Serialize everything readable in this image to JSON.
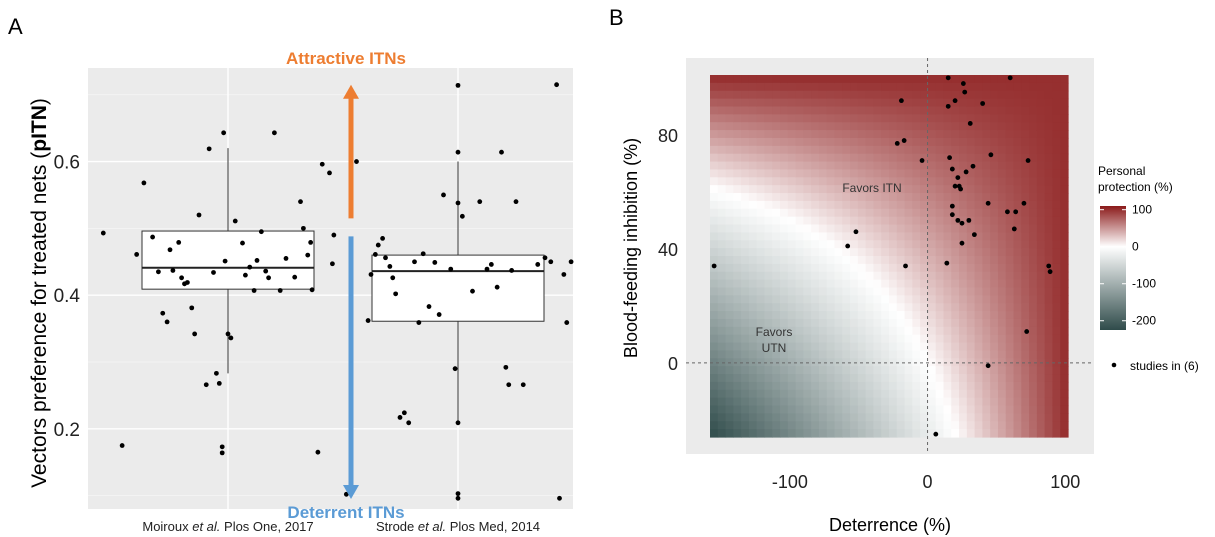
{
  "panels": {
    "A": {
      "letter": "A"
    },
    "B": {
      "letter": "B"
    }
  },
  "chart_data": [
    {
      "type": "scatter",
      "subtype": "boxplot-with-jitter",
      "ylabel_prefix": "Vectors preference for treated nets (",
      "ylabel_bold": "pITN",
      "ylabel_suffix": ")",
      "ylim": [
        0.08,
        0.74
      ],
      "yticks": [
        0.2,
        0.4,
        0.6
      ],
      "ytick_labels": [
        "0.2",
        "0.4",
        "0.6"
      ],
      "grid": true,
      "categories": [
        {
          "pre": "Moiroux ",
          "em": "et al.",
          "post": " Plos One, 2017"
        },
        {
          "pre": "Strode ",
          "em": "et al.",
          "post": " Plos Med, 2014"
        }
      ],
      "boxes": [
        {
          "q1": 0.409,
          "median": 0.441,
          "q3": 0.496,
          "whisker_low": 0.283,
          "whisker_high": 0.62
        },
        {
          "q1": 0.361,
          "median": 0.436,
          "q3": 0.46,
          "whisker_low": 0.209,
          "whisker_high": 0.6
        }
      ],
      "points": [
        [
          {
            "x": -0.86,
            "y": 0.493
          },
          {
            "x": -0.73,
            "y": 0.175
          },
          {
            "x": -0.63,
            "y": 0.461
          },
          {
            "x": -0.58,
            "y": 0.568
          },
          {
            "x": -0.52,
            "y": 0.487
          },
          {
            "x": -0.48,
            "y": 0.435
          },
          {
            "x": -0.45,
            "y": 0.373
          },
          {
            "x": -0.42,
            "y": 0.36
          },
          {
            "x": -0.4,
            "y": 0.468
          },
          {
            "x": -0.38,
            "y": 0.437
          },
          {
            "x": -0.34,
            "y": 0.479
          },
          {
            "x": -0.32,
            "y": 0.426
          },
          {
            "x": -0.3,
            "y": 0.417
          },
          {
            "x": -0.28,
            "y": 0.419
          },
          {
            "x": -0.25,
            "y": 0.381
          },
          {
            "x": -0.23,
            "y": 0.342
          },
          {
            "x": -0.2,
            "y": 0.52
          },
          {
            "x": -0.15,
            "y": 0.266
          },
          {
            "x": -0.13,
            "y": 0.619
          },
          {
            "x": -0.1,
            "y": 0.434
          },
          {
            "x": -0.08,
            "y": 0.283
          },
          {
            "x": -0.06,
            "y": 0.268
          },
          {
            "x": -0.04,
            "y": 0.173
          },
          {
            "x": -0.04,
            "y": 0.164
          },
          {
            "x": -0.03,
            "y": 0.643
          },
          {
            "x": -0.02,
            "y": 0.451
          },
          {
            "x": 0.0,
            "y": 0.342
          },
          {
            "x": 0.02,
            "y": 0.336
          },
          {
            "x": 0.05,
            "y": 0.511
          },
          {
            "x": 0.1,
            "y": 0.478
          },
          {
            "x": 0.12,
            "y": 0.43
          },
          {
            "x": 0.15,
            "y": 0.442
          },
          {
            "x": 0.18,
            "y": 0.407
          },
          {
            "x": 0.2,
            "y": 0.452
          },
          {
            "x": 0.23,
            "y": 0.495
          },
          {
            "x": 0.26,
            "y": 0.436
          },
          {
            "x": 0.28,
            "y": 0.426
          },
          {
            "x": 0.32,
            "y": 0.643
          },
          {
            "x": 0.36,
            "y": 0.407
          },
          {
            "x": 0.4,
            "y": 0.455
          },
          {
            "x": 0.46,
            "y": 0.427
          },
          {
            "x": 0.5,
            "y": 0.54
          },
          {
            "x": 0.52,
            "y": 0.5
          },
          {
            "x": 0.55,
            "y": 0.46
          },
          {
            "x": 0.57,
            "y": 0.479
          },
          {
            "x": 0.58,
            "y": 0.408
          },
          {
            "x": 0.62,
            "y": 0.165
          },
          {
            "x": 0.65,
            "y": 0.596
          },
          {
            "x": 0.7,
            "y": 0.583
          },
          {
            "x": 0.72,
            "y": 0.447
          },
          {
            "x": 0.73,
            "y": 0.49
          }
        ],
        [
          {
            "x": -0.77,
            "y": 0.102
          },
          {
            "x": -0.7,
            "y": 0.6
          },
          {
            "x": -0.62,
            "y": 0.362
          },
          {
            "x": -0.6,
            "y": 0.431
          },
          {
            "x": -0.57,
            "y": 0.461
          },
          {
            "x": -0.55,
            "y": 0.475
          },
          {
            "x": -0.52,
            "y": 0.485
          },
          {
            "x": -0.5,
            "y": 0.456
          },
          {
            "x": -0.47,
            "y": 0.443
          },
          {
            "x": -0.45,
            "y": 0.426
          },
          {
            "x": -0.43,
            "y": 0.402
          },
          {
            "x": -0.4,
            "y": 0.217
          },
          {
            "x": -0.37,
            "y": 0.224
          },
          {
            "x": -0.34,
            "y": 0.209
          },
          {
            "x": -0.3,
            "y": 0.45
          },
          {
            "x": -0.27,
            "y": 0.359
          },
          {
            "x": -0.24,
            "y": 0.462
          },
          {
            "x": -0.2,
            "y": 0.383
          },
          {
            "x": -0.16,
            "y": 0.449
          },
          {
            "x": -0.13,
            "y": 0.371
          },
          {
            "x": -0.1,
            "y": 0.55
          },
          {
            "x": -0.05,
            "y": 0.439
          },
          {
            "x": -0.02,
            "y": 0.29
          },
          {
            "x": 0.0,
            "y": 0.538
          },
          {
            "x": 0.0,
            "y": 0.714
          },
          {
            "x": 0.0,
            "y": 0.614
          },
          {
            "x": 0.0,
            "y": 0.209
          },
          {
            "x": 0.0,
            "y": 0.103
          },
          {
            "x": 0.0,
            "y": 0.096
          },
          {
            "x": 0.03,
            "y": 0.518
          },
          {
            "x": 0.1,
            "y": 0.406
          },
          {
            "x": 0.15,
            "y": 0.54
          },
          {
            "x": 0.2,
            "y": 0.439
          },
          {
            "x": 0.23,
            "y": 0.446
          },
          {
            "x": 0.27,
            "y": 0.412
          },
          {
            "x": 0.3,
            "y": 0.614
          },
          {
            "x": 0.33,
            "y": 0.292
          },
          {
            "x": 0.35,
            "y": 0.266
          },
          {
            "x": 0.37,
            "y": 0.437
          },
          {
            "x": 0.4,
            "y": 0.54
          },
          {
            "x": 0.45,
            "y": 0.266
          },
          {
            "x": 0.55,
            "y": 0.446
          },
          {
            "x": 0.6,
            "y": 0.456
          },
          {
            "x": 0.64,
            "y": 0.45
          },
          {
            "x": 0.68,
            "y": 0.715
          },
          {
            "x": 0.7,
            "y": 0.096
          },
          {
            "x": 0.73,
            "y": 0.431
          },
          {
            "x": 0.75,
            "y": 0.359
          },
          {
            "x": 0.78,
            "y": 0.45
          }
        ]
      ],
      "annotations": {
        "attractive_label": "Attractive ITNs",
        "deterrent_label": "Deterrent ITNs",
        "attractive_color": "#ed7d31",
        "deterrent_color": "#5b9bd5",
        "arrow_split_y": 0.5,
        "arrow_top_y": 0.715,
        "arrow_bottom_y": 0.095
      }
    },
    {
      "type": "heatmap",
      "subtype": "heatmap-with-scatter",
      "xlabel": "Deterrence (%)",
      "ylabel": "Blood-feeding inhibition (%)",
      "xlim": [
        -158,
        102
      ],
      "ylim": [
        -26,
        101
      ],
      "xticks": [
        -100,
        0,
        100
      ],
      "xtick_labels": [
        "-100",
        "0",
        "100"
      ],
      "yticks": [
        0,
        40,
        80
      ],
      "ytick_labels": [
        "0",
        "40",
        "80"
      ],
      "grid": false,
      "reference_lines": {
        "x": 0,
        "y": 0
      },
      "colorscale": {
        "title_line1": "Personal",
        "title_line2": "protection (%)",
        "range": [
          -225,
          110
        ],
        "ticks": [
          100,
          0,
          -100,
          -200
        ],
        "tick_labels": [
          "100",
          "0",
          "-100",
          "-200"
        ],
        "low_color": "#2f4b4a",
        "mid_color": "#ffffff",
        "high_color": "#8b1a1a"
      },
      "region_labels": {
        "itn": "Favors ITN",
        "utn_line1": "Favors",
        "utn_line2": "UTN"
      },
      "legend": {
        "label": "studies in (6)",
        "position": "right"
      },
      "points": [
        {
          "x": -155,
          "y": 34
        },
        {
          "x": -58,
          "y": 41
        },
        {
          "x": -52,
          "y": 46
        },
        {
          "x": -22,
          "y": 77
        },
        {
          "x": -19,
          "y": 92
        },
        {
          "x": -17,
          "y": 78
        },
        {
          "x": -16,
          "y": 34
        },
        {
          "x": -4,
          "y": 71
        },
        {
          "x": 6,
          "y": -25
        },
        {
          "x": 14,
          "y": 35
        },
        {
          "x": 15,
          "y": 100
        },
        {
          "x": 15,
          "y": 90
        },
        {
          "x": 16,
          "y": 72
        },
        {
          "x": 18,
          "y": 68
        },
        {
          "x": 18,
          "y": 52
        },
        {
          "x": 18,
          "y": 55
        },
        {
          "x": 20,
          "y": 92
        },
        {
          "x": 20,
          "y": 62
        },
        {
          "x": 22,
          "y": 65
        },
        {
          "x": 22,
          "y": 50
        },
        {
          "x": 23,
          "y": 62
        },
        {
          "x": 24,
          "y": 61
        },
        {
          "x": 25,
          "y": 42
        },
        {
          "x": 25,
          "y": 49
        },
        {
          "x": 26,
          "y": 98
        },
        {
          "x": 27,
          "y": 95
        },
        {
          "x": 28,
          "y": 67
        },
        {
          "x": 30,
          "y": 50
        },
        {
          "x": 31,
          "y": 84
        },
        {
          "x": 33,
          "y": 69
        },
        {
          "x": 34,
          "y": 45
        },
        {
          "x": 40,
          "y": 91
        },
        {
          "x": 44,
          "y": 56
        },
        {
          "x": 44,
          "y": -1
        },
        {
          "x": 46,
          "y": 73
        },
        {
          "x": 58,
          "y": 53
        },
        {
          "x": 60,
          "y": 100
        },
        {
          "x": 63,
          "y": 47
        },
        {
          "x": 64,
          "y": 53
        },
        {
          "x": 70,
          "y": 56
        },
        {
          "x": 72,
          "y": 11
        },
        {
          "x": 73,
          "y": 71
        },
        {
          "x": 88,
          "y": 34
        },
        {
          "x": 89,
          "y": 32
        }
      ]
    }
  ]
}
